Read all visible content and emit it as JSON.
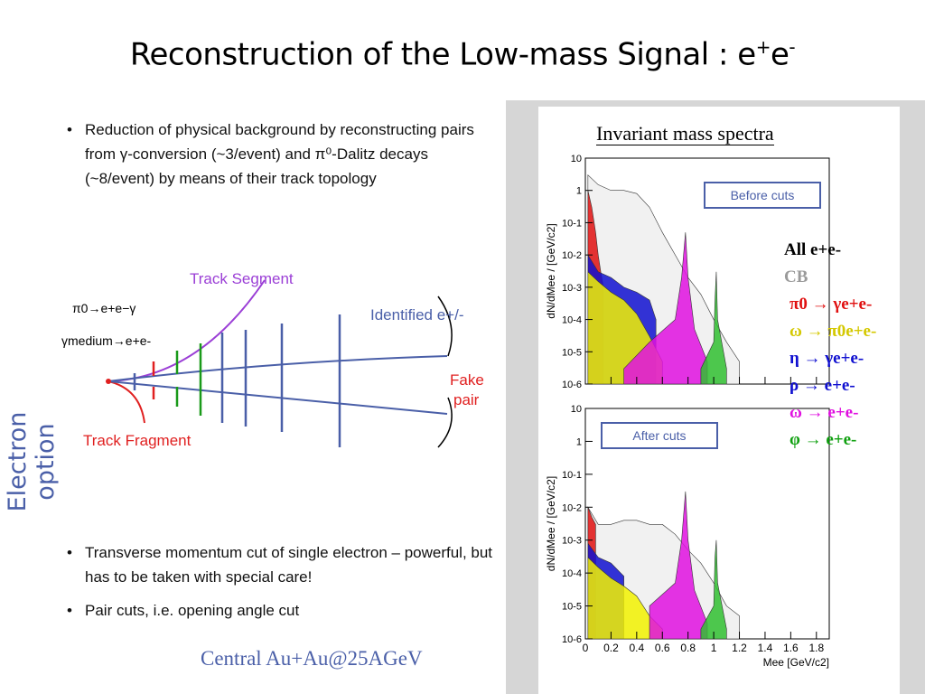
{
  "slide": {
    "title": "Reconstruction of the Low-mass Signal : e",
    "title_sup": "+",
    "title_sup2": "e",
    "title_sup3": "-",
    "side_label": "Electron option",
    "bullets_top": [
      "Reduction of physical background by reconstructing pairs from γ-conversion (~3/event) and π⁰-Dalitz decays  (~8/event) by means of their track topology"
    ],
    "bullets_bottom": [
      "Transverse momentum cut of single electron – powerful, but has to be taken with special care!",
      "Pair cuts, i.e. opening angle cut"
    ],
    "footer": "Central Au+Au@25AGeV"
  },
  "diagram": {
    "track_segment": "Track Segment",
    "track_fragment": "Track Fragment",
    "identified": "Identified e+/-",
    "fake_pair_1": "Fake",
    "fake_pair_2": "pair",
    "reaction_1": "π0→e+e−γ",
    "reaction_2": "γmedium→e+e-",
    "colors": {
      "segment": "#9b3fd6",
      "fragment": "#e02020",
      "track": "#4a5fa8",
      "green": "#1a9a1a"
    }
  },
  "plots": {
    "heading": "Invariant mass spectra",
    "before_label": "Before cuts",
    "after_label": "After cuts",
    "ylabel": "dN/dMee / [GeV/c2]",
    "xlabel": "Mee [GeV/c2]",
    "y_ticks": [
      "10",
      "1",
      "10-1",
      "10-2",
      "10-3",
      "10-4",
      "10-5",
      "10-6"
    ],
    "x_ticks": [
      "0",
      "0.2",
      "0.4",
      "0.6",
      "0.8",
      "1",
      "1.2",
      "1.4",
      "1.6",
      "1.8"
    ],
    "legend": [
      {
        "label": "All e+e-",
        "color": "#000000"
      },
      {
        "label": "CB",
        "color": "#9a9a9a"
      },
      {
        "label": "π0 → γe+e-",
        "color": "#e01010"
      },
      {
        "label": "ω → π0e+e-",
        "color": "#d4c800"
      },
      {
        "label": "η → γe+e-",
        "color": "#1010d0"
      },
      {
        "label": "ρ → e+e-",
        "color": "#1010d0"
      },
      {
        "label": "ω → e+e-",
        "color": "#e010e0"
      },
      {
        "label": "φ → e+e-",
        "color": "#10a010"
      }
    ]
  },
  "chart_data": [
    {
      "type": "area",
      "title": "Before cuts",
      "xlabel": "Mee [GeV/c2]",
      "ylabel": "dN/dMee / [GeV/c2]",
      "y_scale": "log",
      "xlim": [
        0,
        1.9
      ],
      "ylim": [
        1e-06,
        10
      ],
      "series": [
        {
          "name": "CB",
          "x": [
            0.02,
            0.1,
            0.2,
            0.3,
            0.4,
            0.5,
            0.6,
            0.7,
            0.8,
            0.9,
            1.0,
            1.1,
            1.2
          ],
          "values": [
            3,
            1.5,
            1.0,
            1.0,
            0.8,
            0.3,
            0.05,
            0.01,
            0.002,
            0.0006,
            0.0001,
            2e-05,
            5e-06
          ]
        },
        {
          "name": "π0 → γe+e-",
          "x": [
            0.02,
            0.05,
            0.08,
            0.1,
            0.12,
            0.14
          ],
          "values": [
            1,
            0.3,
            0.05,
            0.01,
            0.003,
            0.001
          ]
        },
        {
          "name": "η → γe+e-",
          "x": [
            0.02,
            0.1,
            0.2,
            0.3,
            0.4,
            0.5,
            0.55
          ],
          "values": [
            0.01,
            0.003,
            0.002,
            0.001,
            0.0007,
            0.0004,
            0.0001
          ]
        },
        {
          "name": "ω → π0e+e-",
          "x": [
            0.02,
            0.1,
            0.2,
            0.3,
            0.4,
            0.5,
            0.6
          ],
          "values": [
            0.003,
            0.0015,
            0.0007,
            0.0004,
            0.00015,
            3e-05,
            5e-06
          ]
        },
        {
          "name": "ω → e+e-",
          "x": [
            0.3,
            0.5,
            0.7,
            0.75,
            0.78,
            0.8,
            0.85,
            0.95
          ],
          "values": [
            3e-06,
            2e-05,
            0.0001,
            0.002,
            0.05,
            0.002,
            5e-05,
            5e-06
          ]
        },
        {
          "name": "φ → e+e-",
          "x": [
            0.9,
            1.0,
            1.01,
            1.02,
            1.03,
            1.1
          ],
          "values": [
            3e-06,
            2e-05,
            0.0004,
            0.003,
            0.0001,
            3e-06
          ]
        }
      ]
    },
    {
      "type": "area",
      "title": "After cuts",
      "xlabel": "Mee [GeV/c2]",
      "ylabel": "dN/dMee / [GeV/c2]",
      "y_scale": "log",
      "xlim": [
        0,
        1.9
      ],
      "ylim": [
        1e-06,
        10
      ],
      "series": [
        {
          "name": "CB",
          "x": [
            0.02,
            0.1,
            0.2,
            0.3,
            0.4,
            0.5,
            0.6,
            0.7,
            0.8,
            0.9,
            1.0,
            1.1,
            1.2
          ],
          "values": [
            0.01,
            0.003,
            0.003,
            0.004,
            0.004,
            0.003,
            0.003,
            0.0015,
            0.0005,
            0.0002,
            5e-05,
            1e-05,
            5e-06
          ]
        },
        {
          "name": "π0 → γe+e-",
          "x": [
            0.02,
            0.05,
            0.08
          ],
          "values": [
            0.01,
            0.005,
            0.003
          ]
        },
        {
          "name": "η → γe+e-",
          "x": [
            0.02,
            0.1,
            0.2,
            0.3
          ],
          "values": [
            0.0008,
            0.0003,
            0.0002,
            8e-05
          ]
        },
        {
          "name": "ω → π0e+e-",
          "x": [
            0.02,
            0.1,
            0.2,
            0.3,
            0.4,
            0.5,
            0.6
          ],
          "values": [
            0.0003,
            0.00015,
            7e-05,
            4e-05,
            2e-05,
            5e-06,
            2e-06
          ]
        },
        {
          "name": "ω → e+e-",
          "x": [
            0.5,
            0.7,
            0.75,
            0.78,
            0.8,
            0.85,
            0.95
          ],
          "values": [
            1e-05,
            5e-05,
            0.001,
            0.03,
            0.001,
            3e-05,
            3e-06
          ]
        },
        {
          "name": "φ → e+e-",
          "x": [
            0.9,
            1.0,
            1.01,
            1.02,
            1.03,
            1.1
          ],
          "values": [
            2e-06,
            1e-05,
            0.0003,
            0.001,
            5e-05,
            2e-06
          ]
        }
      ]
    }
  ]
}
